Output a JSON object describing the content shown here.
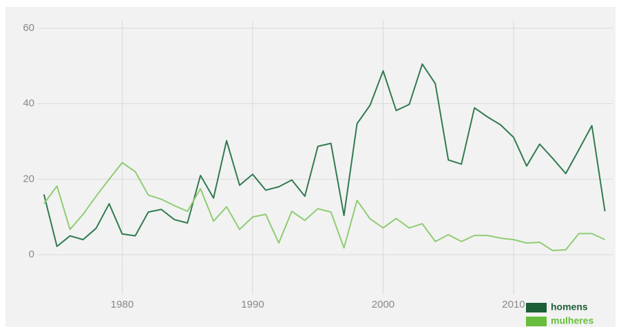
{
  "chart_data": {
    "type": "line",
    "x": [
      1974,
      1975,
      1976,
      1977,
      1978,
      1979,
      1980,
      1981,
      1982,
      1983,
      1984,
      1985,
      1986,
      1987,
      1988,
      1989,
      1990,
      1991,
      1992,
      1993,
      1994,
      1995,
      1996,
      1997,
      1998,
      1999,
      2000,
      2001,
      2002,
      2003,
      2004,
      2005,
      2006,
      2007,
      2008,
      2009,
      2010,
      2011,
      2012,
      2013,
      2014,
      2015,
      2016,
      2017
    ],
    "series": [
      {
        "name": "homens",
        "color": "#2f7a4e",
        "legend_color": "#1c5e35",
        "values": [
          16,
          2.2,
          5,
          4,
          7,
          13.5,
          5.5,
          5,
          11.3,
          12,
          9.3,
          8.4,
          21,
          15,
          30.2,
          18.4,
          21.3,
          17.1,
          18,
          19.8,
          15.5,
          28.7,
          29.5,
          10.4,
          34.7,
          39.6,
          48.7,
          38.2,
          39.8,
          50.5,
          45.3,
          25.1,
          24,
          38.9,
          36.5,
          34.4,
          31.1,
          23.5,
          29.3,
          25.5,
          21.5,
          27.8,
          34.2,
          11.5
        ]
      },
      {
        "name": "mulheres",
        "color": "#8fcc72",
        "legend_color": "#68bd3c",
        "values": [
          13.5,
          18.2,
          6.7,
          10.7,
          15.5,
          20,
          24.4,
          22,
          15.8,
          14.7,
          13,
          11.5,
          17.5,
          8.9,
          12.7,
          6.7,
          10,
          10.7,
          3.1,
          11.5,
          9.1,
          12.2,
          11.3,
          1.8,
          14.4,
          9.5,
          7.1,
          9.6,
          7.1,
          8.2,
          3.5,
          5.3,
          3.5,
          5.1,
          5.1,
          4.4,
          4,
          3.1,
          3.3,
          1.1,
          1.3,
          5.6,
          5.6,
          4
        ]
      }
    ],
    "xlim": [
      1973.8,
      2017.6
    ],
    "xticks": [
      1980,
      1990,
      2000,
      2010
    ],
    "ylim": [
      -6,
      62
    ],
    "yticks": [
      0,
      20,
      40,
      60
    ],
    "grid": true
  }
}
